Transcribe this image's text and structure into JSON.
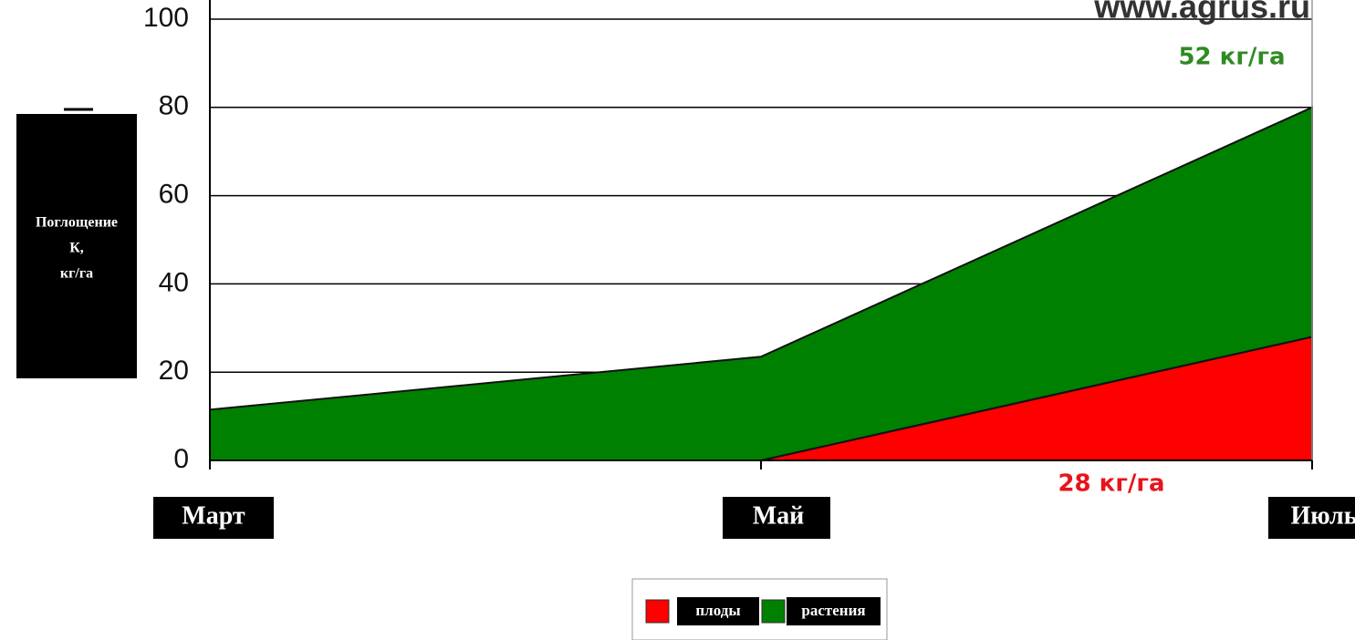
{
  "chart_data": {
    "type": "stacked_area",
    "watermark": "www.agrus.ru",
    "y_label": [
      "Поглощение",
      "К,",
      "кг/га"
    ],
    "categories": [
      "Март",
      "Май",
      "Июль"
    ],
    "series": [
      {
        "name": "плоды",
        "color": "#ff0000",
        "values": [
          0,
          0,
          28
        ],
        "value_labels": [
          null,
          null,
          "28 кг/га"
        ],
        "label_color": "#e8141b"
      },
      {
        "name": "растения",
        "color": "#008000",
        "values": [
          11.5,
          23.5,
          52
        ],
        "value_labels": [
          null,
          null,
          "52 кг/га"
        ],
        "label_color": "#2e8b22"
      }
    ],
    "ylim": [
      0,
      100
    ],
    "yticks": [
      0,
      20,
      40,
      60,
      80,
      100
    ],
    "grid": true,
    "legend": "bottom"
  }
}
